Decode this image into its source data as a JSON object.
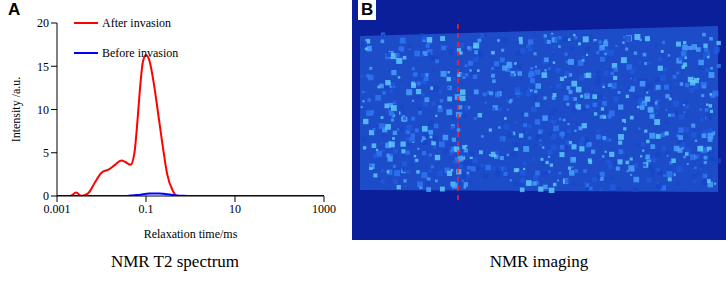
{
  "chart_data": {
    "type": "line",
    "panel": "A",
    "caption": "NMR T2 spectrum",
    "xlabel": "Relaxation time/ms",
    "ylabel": "Intensity /a.u.",
    "log": "x",
    "xlim": [
      0.001,
      1000
    ],
    "xticks": [
      0.001,
      0.1,
      10,
      1000
    ],
    "ylim": [
      0,
      20
    ],
    "yticks": [
      0,
      5,
      10,
      15,
      20
    ],
    "legend": "upper left",
    "x": [
      0.001,
      0.002,
      0.0027,
      0.0035,
      0.005,
      0.007,
      0.01,
      0.015,
      0.02,
      0.028,
      0.035,
      0.045,
      0.055,
      0.065,
      0.075,
      0.085,
      0.1,
      0.12,
      0.15,
      0.2,
      0.25,
      0.3,
      0.4,
      0.5,
      0.7,
      1,
      1000
    ],
    "series": [
      {
        "name": "After invasion",
        "color": "#ff0000",
        "values": [
          0,
          0,
          0.4,
          0,
          0.3,
          1.5,
          2.7,
          3.1,
          3.6,
          4.1,
          3.9,
          3.6,
          5,
          9,
          13,
          15.5,
          16.3,
          15.6,
          13,
          8.5,
          5,
          2.5,
          0.6,
          0,
          0,
          0,
          0
        ]
      },
      {
        "name": "Before invasion",
        "color": "#0000ff",
        "values": [
          0,
          0,
          0,
          0,
          0,
          0,
          0,
          0,
          0,
          0,
          0,
          0.05,
          0.08,
          0.12,
          0.15,
          0.2,
          0.25,
          0.3,
          0.3,
          0.3,
          0.25,
          0.2,
          0.12,
          0.06,
          0.02,
          0,
          0
        ]
      }
    ]
  },
  "image_panel": {
    "panel": "B",
    "caption": "NMR imaging"
  }
}
